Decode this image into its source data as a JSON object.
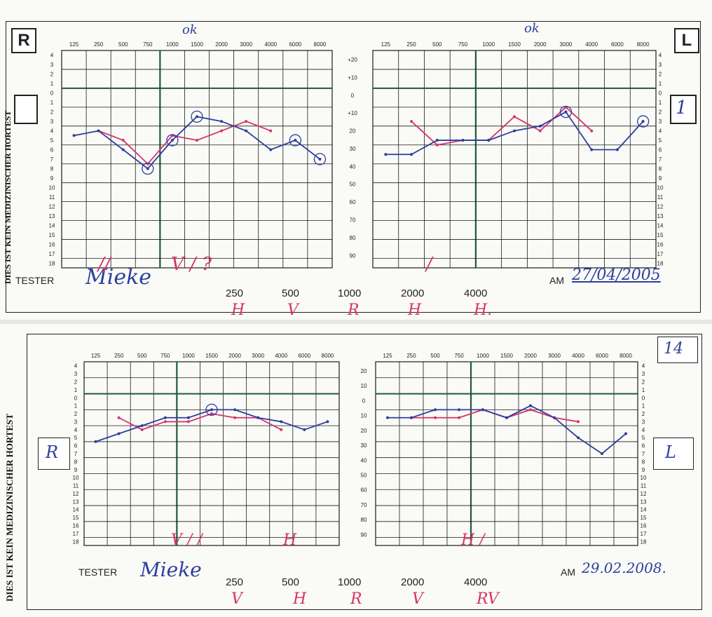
{
  "top": {
    "side_left": "R",
    "side_right": "L",
    "box_left_value": "",
    "box_right_value": "1",
    "ok_left": "ok",
    "ok_right": "ok",
    "vertical_text": "DIES IST KEIN MEDIZINISCHER HORTEST",
    "frequencies": [
      "125",
      "250",
      "500",
      "750",
      "1000",
      "1500",
      "2000",
      "3000",
      "4000",
      "6000",
      "8000"
    ],
    "left_scale": [
      "4",
      "3",
      "2",
      "1",
      "0",
      "1",
      "2",
      "3",
      "4",
      "5",
      "6",
      "7",
      "8",
      "9",
      "10",
      "11",
      "12",
      "13",
      "14",
      "15",
      "16",
      "17",
      "18"
    ],
    "right_scale": [
      "4",
      "3",
      "2",
      "1",
      "0",
      "1",
      "2",
      "3",
      "4",
      "5",
      "6",
      "7",
      "8",
      "9",
      "10",
      "11",
      "12",
      "13",
      "14",
      "15",
      "16",
      "17",
      "18"
    ],
    "db_scale": [
      "+20",
      "+10",
      "0",
      "+10",
      "20",
      "30",
      "40",
      "50",
      "60",
      "70",
      "80",
      "90"
    ],
    "tester_label": "TESTER",
    "tester_signature": "Mieke",
    "am_label": "AM",
    "date": "27/04/2005",
    "bottom_freqs": [
      "250",
      "500",
      "1000",
      "2000",
      "4000"
    ],
    "bottom_marks": [
      "H",
      "V",
      "R",
      "H",
      "H."
    ],
    "tally_marks": "V / ?",
    "tally_left": "//",
    "tally_right": "/",
    "right_ear": {
      "blue": [
        5,
        4.5,
        6.5,
        8.5,
        5.5,
        3,
        3.5,
        4.5,
        6.5,
        5.5,
        7.5
      ],
      "red": [
        null,
        4.5,
        5.5,
        8,
        5,
        5.5,
        4.5,
        3.5,
        4.5,
        null,
        null
      ]
    },
    "left_ear": {
      "blue": [
        7,
        7,
        5.5,
        5.5,
        5.5,
        4.5,
        4,
        2.5,
        6.5,
        6.5,
        3.5
      ],
      "red": [
        null,
        3.5,
        6,
        5.5,
        5.5,
        3,
        4.5,
        2,
        4.5,
        null,
        null
      ]
    }
  },
  "bottom": {
    "page_number": "14",
    "side_left": "R",
    "side_right": "L",
    "vertical_text": "DIES IST KEIN MEDIZINISCHER HORTEST",
    "frequencies": [
      "125",
      "250",
      "500",
      "750",
      "1000",
      "1500",
      "2000",
      "3000",
      "4000",
      "6000",
      "8000"
    ],
    "left_scale": [
      "4",
      "3",
      "2",
      "1",
      "0",
      "1",
      "2",
      "3",
      "4",
      "5",
      "6",
      "7",
      "8",
      "9",
      "10",
      "11",
      "12",
      "13",
      "14",
      "15",
      "16",
      "17",
      "18"
    ],
    "right_scale": [
      "4",
      "3",
      "2",
      "1",
      "0",
      "1",
      "2",
      "3",
      "4",
      "5",
      "6",
      "7",
      "8",
      "9",
      "10",
      "11",
      "12",
      "13",
      "14",
      "15",
      "16",
      "17",
      "18"
    ],
    "db_scale": [
      "20",
      "10",
      "0",
      "10",
      "20",
      "30",
      "40",
      "50",
      "60",
      "70",
      "80",
      "90"
    ],
    "tester_label": "TESTER",
    "tester_signature": "Mieke",
    "am_label": "AM",
    "date": "29.02.2008.",
    "bottom_freqs": [
      "250",
      "500",
      "1000",
      "2000",
      "4000"
    ],
    "bottom_marks": [
      "V",
      "H",
      "R",
      "V",
      "RV"
    ],
    "tally_left": "V / /",
    "tally_mid": "H",
    "tally_right": "H /",
    "right_ear": {
      "blue": [
        6,
        5,
        4,
        3,
        3,
        2,
        2,
        3,
        3.5,
        4.5,
        3.5
      ],
      "red": [
        null,
        3,
        4.5,
        3.5,
        3.5,
        2.5,
        3,
        3,
        4.5,
        null,
        null
      ]
    },
    "left_ear": {
      "blue": [
        3,
        3,
        2,
        2,
        2,
        3,
        1.5,
        3,
        5.5,
        7.5,
        5
      ],
      "red": [
        null,
        3,
        3,
        3,
        2,
        3,
        2,
        3,
        3.5,
        null,
        null
      ]
    }
  },
  "colors": {
    "blue": "#2c3f9e",
    "red": "#d6336c",
    "grid": "#1a1a1a",
    "thick": "#1f5a3a"
  }
}
